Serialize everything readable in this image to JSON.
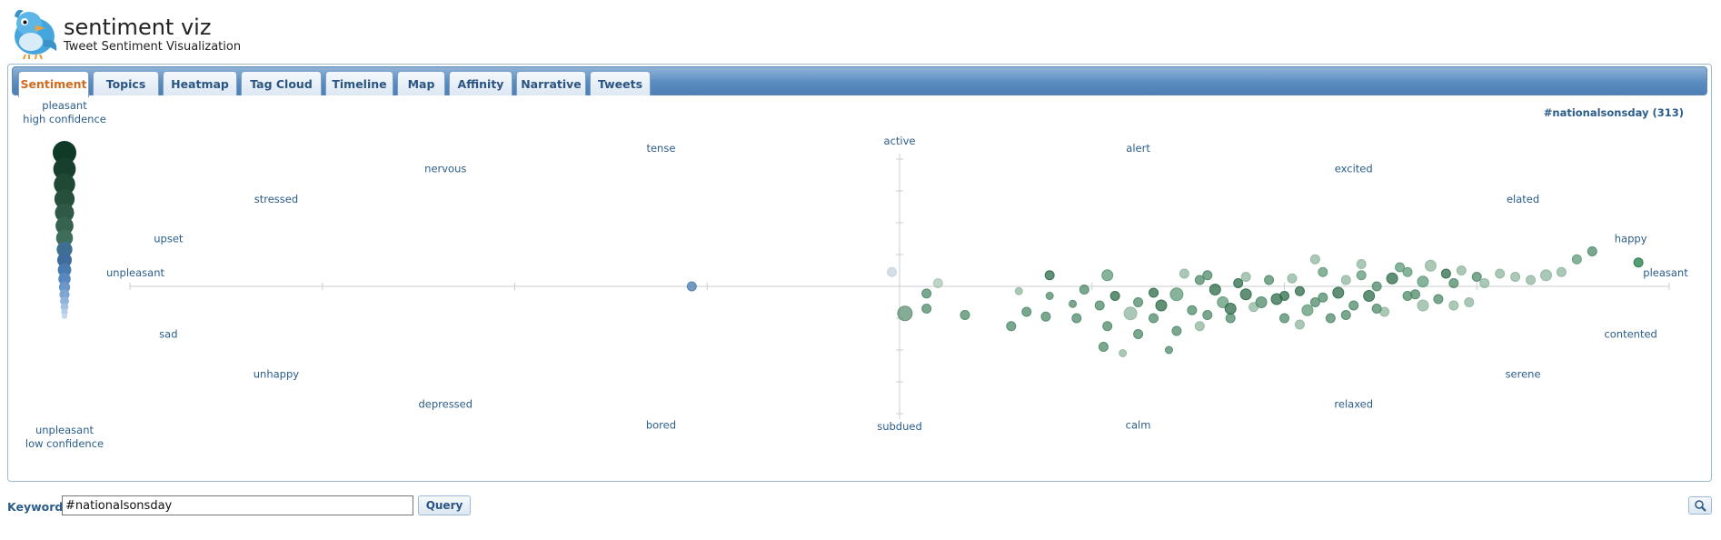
{
  "app": {
    "title": "sentiment viz",
    "subtitle": "Tweet Sentiment Visualization"
  },
  "tabs": [
    {
      "label": "Sentiment",
      "active": true
    },
    {
      "label": "Topics"
    },
    {
      "label": "Heatmap"
    },
    {
      "label": "Tag Cloud"
    },
    {
      "label": "Timeline"
    },
    {
      "label": "Map"
    },
    {
      "label": "Affinity"
    },
    {
      "label": "Narrative"
    },
    {
      "label": "Tweets"
    }
  ],
  "query_summary": "#nationalsonsday (313)",
  "legend": {
    "top_line1": "pleasant",
    "top_line2": "high confidence",
    "bottom_line1": "unpleasant",
    "bottom_line2": "low confidence",
    "colors_dark_to_light": [
      "#0f3a25",
      "#183f2e",
      "#1f4835",
      "#264f3c",
      "#2e5946",
      "#35634f",
      "#3e6d5b",
      "#3e6f92",
      "#3f6c9b",
      "#4a7bb0",
      "#5888bf",
      "#6b97c8",
      "#7ea6d1",
      "#90b3d9",
      "#a3c1e0",
      "#b5cde6",
      "#c5d8ec"
    ]
  },
  "chart_data": {
    "type": "scatter",
    "title": "",
    "xlim": [
      -1,
      1
    ],
    "ylim": [
      -1,
      1
    ],
    "axis_labels": {
      "top": "active",
      "bottom": "subdued",
      "left": "unpleasant",
      "right": "pleasant"
    },
    "emotion_labels": [
      {
        "text": "tense",
        "x": -0.31,
        "y": 0.87
      },
      {
        "text": "nervous",
        "x": -0.59,
        "y": 0.74
      },
      {
        "text": "stressed",
        "x": -0.81,
        "y": 0.55
      },
      {
        "text": "upset",
        "x": -0.95,
        "y": 0.3
      },
      {
        "text": "alert",
        "x": 0.31,
        "y": 0.87
      },
      {
        "text": "excited",
        "x": 0.59,
        "y": 0.74
      },
      {
        "text": "elated",
        "x": 0.81,
        "y": 0.55
      },
      {
        "text": "happy",
        "x": 0.95,
        "y": 0.3
      },
      {
        "text": "sad",
        "x": -0.95,
        "y": -0.3
      },
      {
        "text": "unhappy",
        "x": -0.81,
        "y": -0.55
      },
      {
        "text": "depressed",
        "x": -0.59,
        "y": -0.74
      },
      {
        "text": "bored",
        "x": -0.31,
        "y": -0.87
      },
      {
        "text": "contented",
        "x": 0.95,
        "y": -0.3
      },
      {
        "text": "serene",
        "x": 0.81,
        "y": -0.55
      },
      {
        "text": "relaxed",
        "x": 0.59,
        "y": -0.74
      },
      {
        "text": "calm",
        "x": 0.31,
        "y": -0.87
      }
    ],
    "points": [
      {
        "x": -0.27,
        "y": 0.0,
        "size": 5,
        "color": "#4a7bb0"
      },
      {
        "x": -0.01,
        "y": 0.09,
        "size": 5,
        "color": "#c6d3de"
      },
      {
        "x": 0.05,
        "y": 0.02,
        "size": 5,
        "color": "#a8c6b3"
      },
      {
        "x": 0.035,
        "y": -0.045,
        "size": 5,
        "color": "#4f8a6a"
      },
      {
        "x": 0.035,
        "y": -0.14,
        "size": 5,
        "color": "#4f8a6a"
      },
      {
        "x": 0.007,
        "y": -0.17,
        "size": 8,
        "color": "#5e8f74"
      },
      {
        "x": 0.085,
        "y": -0.18,
        "size": 5,
        "color": "#4f8a6a"
      },
      {
        "x": 0.195,
        "y": 0.07,
        "size": 5,
        "color": "#2e6b48"
      },
      {
        "x": 0.155,
        "y": -0.03,
        "size": 4,
        "color": "#8fb69e"
      },
      {
        "x": 0.195,
        "y": -0.06,
        "size": 4,
        "color": "#4f8a6a"
      },
      {
        "x": 0.165,
        "y": -0.16,
        "size": 5,
        "color": "#4f8a6a"
      },
      {
        "x": 0.145,
        "y": -0.25,
        "size": 5,
        "color": "#4f8a6a"
      },
      {
        "x": 0.19,
        "y": -0.19,
        "size": 5,
        "color": "#4f8a6a"
      },
      {
        "x": 0.225,
        "y": -0.11,
        "size": 4,
        "color": "#4f8a6a"
      },
      {
        "x": 0.23,
        "y": -0.2,
        "size": 5,
        "color": "#4f8a6a"
      },
      {
        "x": 0.27,
        "y": 0.07,
        "size": 6,
        "color": "#5e9a78"
      },
      {
        "x": 0.24,
        "y": -0.02,
        "size": 5,
        "color": "#4f8a6a"
      },
      {
        "x": 0.26,
        "y": -0.12,
        "size": 5,
        "color": "#4f8a6a"
      },
      {
        "x": 0.265,
        "y": -0.38,
        "size": 5,
        "color": "#4f8a6a"
      },
      {
        "x": 0.29,
        "y": -0.42,
        "size": 4,
        "color": "#8fb69e"
      },
      {
        "x": 0.31,
        "y": -0.3,
        "size": 5,
        "color": "#4f8a6a"
      },
      {
        "x": 0.3,
        "y": -0.17,
        "size": 7,
        "color": "#8fb69e"
      },
      {
        "x": 0.33,
        "y": -0.2,
        "size": 5,
        "color": "#4f8a6a"
      },
      {
        "x": 0.35,
        "y": -0.4,
        "size": 4,
        "color": "#4f8a6a"
      },
      {
        "x": 0.34,
        "y": -0.12,
        "size": 6,
        "color": "#2e6b48"
      },
      {
        "x": 0.36,
        "y": -0.05,
        "size": 7,
        "color": "#5e9a78"
      },
      {
        "x": 0.37,
        "y": 0.08,
        "size": 5,
        "color": "#8fb69e"
      },
      {
        "x": 0.38,
        "y": -0.15,
        "size": 5,
        "color": "#4f8a6a"
      },
      {
        "x": 0.4,
        "y": 0.07,
        "size": 5,
        "color": "#4f8a6a"
      },
      {
        "x": 0.39,
        "y": -0.25,
        "size": 5,
        "color": "#8fb69e"
      },
      {
        "x": 0.42,
        "y": -0.1,
        "size": 6,
        "color": "#5e9a78"
      },
      {
        "x": 0.44,
        "y": 0.02,
        "size": 5,
        "color": "#2e6b48"
      },
      {
        "x": 0.43,
        "y": -0.2,
        "size": 5,
        "color": "#4f8a6a"
      },
      {
        "x": 0.45,
        "y": -0.05,
        "size": 6,
        "color": "#2e6b48"
      },
      {
        "x": 0.46,
        "y": -0.13,
        "size": 5,
        "color": "#8fb69e"
      },
      {
        "x": 0.48,
        "y": 0.04,
        "size": 5,
        "color": "#4f8a6a"
      },
      {
        "x": 0.49,
        "y": -0.08,
        "size": 6,
        "color": "#2e6b48"
      },
      {
        "x": 0.5,
        "y": -0.2,
        "size": 5,
        "color": "#4f8a6a"
      },
      {
        "x": 0.51,
        "y": 0.05,
        "size": 5,
        "color": "#8fb69e"
      },
      {
        "x": 0.52,
        "y": -0.03,
        "size": 5,
        "color": "#2e6b48"
      },
      {
        "x": 0.53,
        "y": -0.15,
        "size": 6,
        "color": "#5e9a78"
      },
      {
        "x": 0.55,
        "y": 0.09,
        "size": 5,
        "color": "#5e9a78"
      },
      {
        "x": 0.54,
        "y": -0.1,
        "size": 5,
        "color": "#4f8a6a"
      },
      {
        "x": 0.56,
        "y": -0.2,
        "size": 5,
        "color": "#4f8a6a"
      },
      {
        "x": 0.57,
        "y": -0.04,
        "size": 6,
        "color": "#2e6b48"
      },
      {
        "x": 0.58,
        "y": 0.04,
        "size": 5,
        "color": "#8fb69e"
      },
      {
        "x": 0.59,
        "y": -0.12,
        "size": 5,
        "color": "#4f8a6a"
      },
      {
        "x": 0.6,
        "y": 0.07,
        "size": 5,
        "color": "#5e9a78"
      },
      {
        "x": 0.61,
        "y": -0.06,
        "size": 6,
        "color": "#2e6b48"
      },
      {
        "x": 0.62,
        "y": 0.0,
        "size": 5,
        "color": "#4f8a6a"
      },
      {
        "x": 0.63,
        "y": -0.16,
        "size": 5,
        "color": "#8fb69e"
      },
      {
        "x": 0.64,
        "y": 0.05,
        "size": 6,
        "color": "#2e6b48"
      },
      {
        "x": 0.66,
        "y": 0.09,
        "size": 5,
        "color": "#5e9a78"
      },
      {
        "x": 0.67,
        "y": -0.05,
        "size": 5,
        "color": "#4f8a6a"
      },
      {
        "x": 0.68,
        "y": 0.03,
        "size": 6,
        "color": "#5e9a78"
      },
      {
        "x": 0.69,
        "y": 0.13,
        "size": 6,
        "color": "#8fb69e"
      },
      {
        "x": 0.7,
        "y": -0.08,
        "size": 5,
        "color": "#4f8a6a"
      },
      {
        "x": 0.71,
        "y": 0.08,
        "size": 5,
        "color": "#2e6b48"
      },
      {
        "x": 0.72,
        "y": 0.02,
        "size": 5,
        "color": "#4f8a6a"
      },
      {
        "x": 0.73,
        "y": 0.1,
        "size": 5,
        "color": "#8fb69e"
      },
      {
        "x": 0.74,
        "y": -0.1,
        "size": 5,
        "color": "#8fb69e"
      },
      {
        "x": 0.75,
        "y": 0.06,
        "size": 5,
        "color": "#4f8a6a"
      },
      {
        "x": 0.76,
        "y": 0.02,
        "size": 5,
        "color": "#8fb69e"
      },
      {
        "x": 0.78,
        "y": 0.08,
        "size": 5,
        "color": "#8fb69e"
      },
      {
        "x": 0.8,
        "y": 0.06,
        "size": 5,
        "color": "#8fb69e"
      },
      {
        "x": 0.82,
        "y": 0.04,
        "size": 5,
        "color": "#8fb69e"
      },
      {
        "x": 0.84,
        "y": 0.07,
        "size": 6,
        "color": "#8fb69e"
      },
      {
        "x": 0.86,
        "y": 0.09,
        "size": 5,
        "color": "#8fb69e"
      },
      {
        "x": 0.88,
        "y": 0.17,
        "size": 5,
        "color": "#5e9a78"
      },
      {
        "x": 0.9,
        "y": 0.22,
        "size": 5,
        "color": "#4f8a6a"
      },
      {
        "x": 0.96,
        "y": 0.15,
        "size": 5,
        "color": "#1f7a46"
      },
      {
        "x": 0.54,
        "y": 0.17,
        "size": 5,
        "color": "#8fb69e"
      },
      {
        "x": 0.6,
        "y": 0.14,
        "size": 5,
        "color": "#8fb69e"
      },
      {
        "x": 0.66,
        "y": -0.06,
        "size": 5,
        "color": "#4f8a6a"
      },
      {
        "x": 0.65,
        "y": 0.12,
        "size": 5,
        "color": "#5e9a78"
      },
      {
        "x": 0.68,
        "y": -0.12,
        "size": 6,
        "color": "#8fb69e"
      },
      {
        "x": 0.62,
        "y": -0.14,
        "size": 5,
        "color": "#4f8a6a"
      },
      {
        "x": 0.41,
        "y": -0.02,
        "size": 6,
        "color": "#2e6b48"
      },
      {
        "x": 0.43,
        "y": -0.14,
        "size": 6,
        "color": "#2e6b48"
      },
      {
        "x": 0.47,
        "y": -0.1,
        "size": 6,
        "color": "#4f8a6a"
      },
      {
        "x": 0.45,
        "y": 0.06,
        "size": 5,
        "color": "#8fb69e"
      },
      {
        "x": 0.39,
        "y": 0.04,
        "size": 5,
        "color": "#4f8a6a"
      },
      {
        "x": 0.33,
        "y": -0.04,
        "size": 5,
        "color": "#2e6b48"
      },
      {
        "x": 0.31,
        "y": -0.1,
        "size": 5,
        "color": "#4f8a6a"
      },
      {
        "x": 0.28,
        "y": -0.06,
        "size": 5,
        "color": "#2e6b48"
      },
      {
        "x": 0.27,
        "y": -0.25,
        "size": 5,
        "color": "#4f8a6a"
      },
      {
        "x": 0.36,
        "y": -0.28,
        "size": 5,
        "color": "#4f8a6a"
      },
      {
        "x": 0.4,
        "y": -0.18,
        "size": 5,
        "color": "#4f8a6a"
      },
      {
        "x": 0.52,
        "y": -0.24,
        "size": 5,
        "color": "#8fb69e"
      },
      {
        "x": 0.58,
        "y": -0.18,
        "size": 5,
        "color": "#4f8a6a"
      },
      {
        "x": 0.72,
        "y": -0.12,
        "size": 5,
        "color": "#8fb69e"
      },
      {
        "x": 0.5,
        "y": -0.06,
        "size": 5,
        "color": "#2e6b48"
      },
      {
        "x": 0.55,
        "y": -0.07,
        "size": 5,
        "color": "#4f8a6a"
      }
    ]
  },
  "search": {
    "label": "Keywords:",
    "value": "#nationalsonsday",
    "button": "Query"
  }
}
